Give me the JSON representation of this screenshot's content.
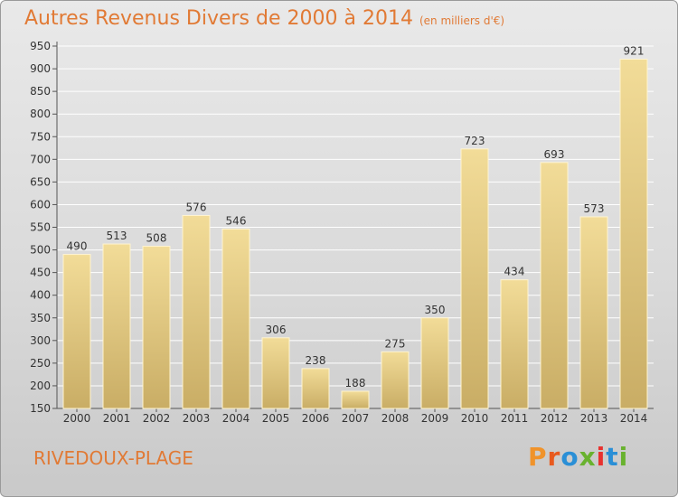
{
  "chart_data": {
    "type": "bar",
    "title": "Autres Revenus Divers de 2000 à 2014",
    "subtitle": "(en milliers d'€)",
    "categories": [
      "2000",
      "2001",
      "2002",
      "2003",
      "2004",
      "2005",
      "2006",
      "2007",
      "2008",
      "2009",
      "2010",
      "2011",
      "2012",
      "2013",
      "2014"
    ],
    "values": [
      490,
      513,
      508,
      576,
      546,
      306,
      238,
      188,
      275,
      350,
      723,
      434,
      693,
      573,
      921
    ],
    "ylim": [
      150,
      950
    ],
    "yticks": [
      150,
      200,
      250,
      300,
      350,
      400,
      450,
      500,
      550,
      600,
      650,
      700,
      750,
      800,
      850,
      900,
      950
    ],
    "grid": true,
    "xlabel": "",
    "ylabel": ""
  },
  "footer": {
    "city": "RIVEDOUX-PLAGE",
    "logo": "Proxiti"
  },
  "colors": {
    "title": "#e17a35",
    "bar_light": "#f2dc98",
    "bar_dark": "#c9ad65",
    "logo_letters": [
      "#f0932b",
      "#e85a1e",
      "#2a8fd6",
      "#69b22f",
      "#e8322f",
      "#2a8fd6",
      "#69b22f"
    ]
  }
}
